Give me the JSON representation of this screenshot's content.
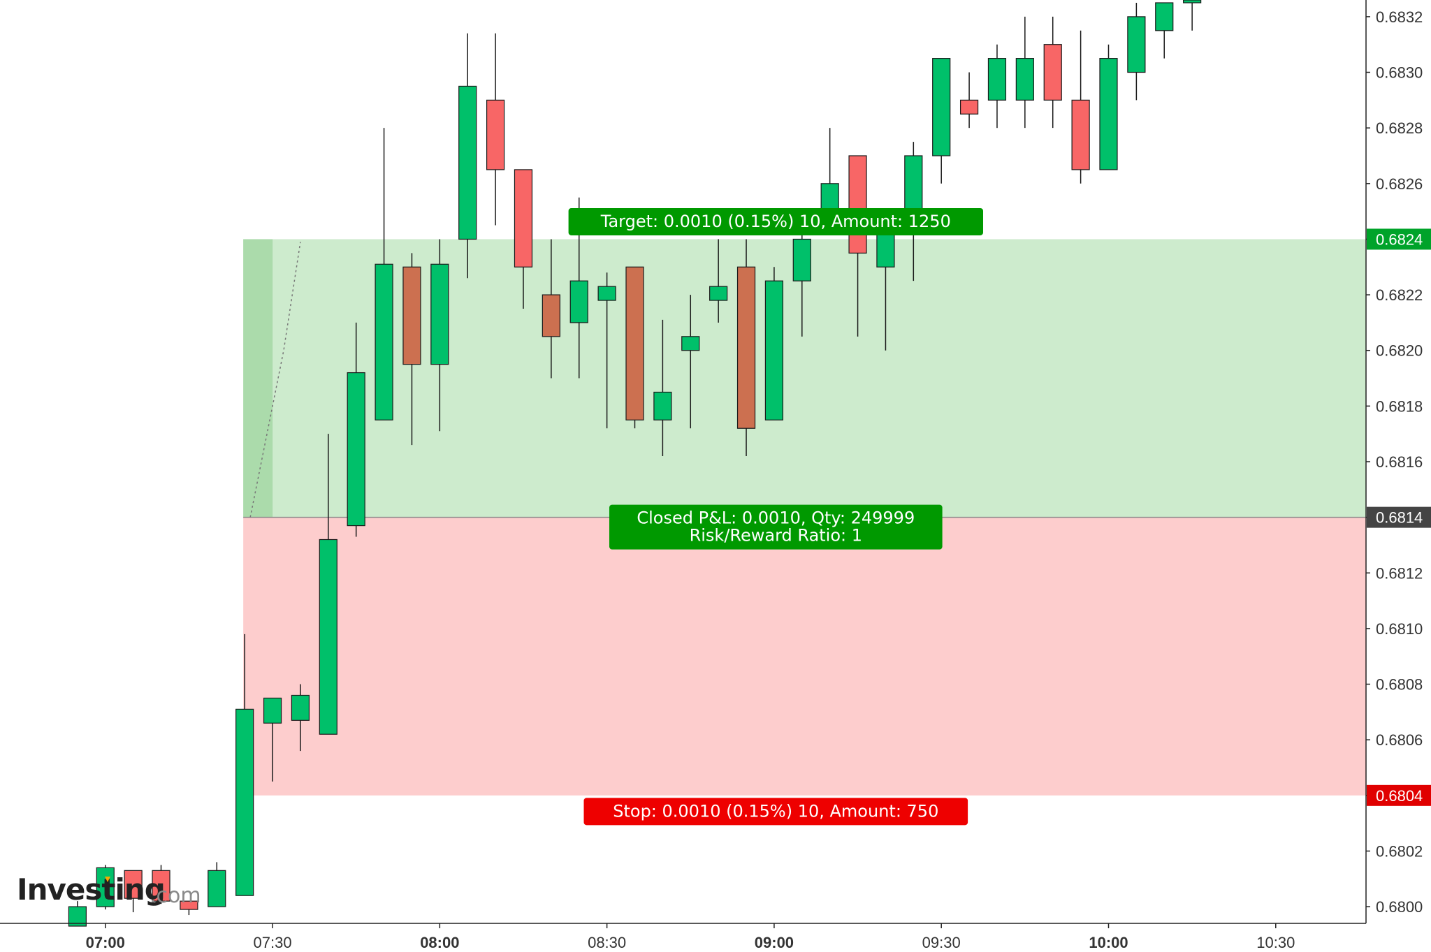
{
  "chart_data": {
    "type": "candlestick",
    "x_ticks": [
      {
        "label": "07:00",
        "minute": 420,
        "bold": true
      },
      {
        "label": "07:30",
        "minute": 450,
        "bold": false
      },
      {
        "label": "08:00",
        "minute": 480,
        "bold": true
      },
      {
        "label": "08:30",
        "minute": 510,
        "bold": false
      },
      {
        "label": "09:00",
        "minute": 540,
        "bold": true
      },
      {
        "label": "09:30",
        "minute": 570,
        "bold": false
      },
      {
        "label": "10:00",
        "minute": 600,
        "bold": true
      },
      {
        "label": "10:30",
        "minute": 630,
        "bold": false
      }
    ],
    "x_range_minutes": [
      401.1,
      646.2
    ],
    "y_ticks": [
      "0.6800",
      "0.6802",
      "0.6804",
      "0.6806",
      "0.6808",
      "0.6810",
      "0.6812",
      "0.6814",
      "0.6816",
      "0.6818",
      "0.6820",
      "0.6822",
      "0.6824",
      "0.6826",
      "0.6828",
      "0.6830",
      "0.6832"
    ],
    "ylim": [
      0.67994,
      0.68326
    ],
    "candles": [
      {
        "t": 415,
        "o": 0.67993,
        "h": 0.68002,
        "l": 0.67993,
        "c": 0.68
      },
      {
        "t": 420,
        "o": 0.68,
        "h": 0.68015,
        "l": 0.67999,
        "c": 0.68014
      },
      {
        "t": 425,
        "o": 0.68013,
        "h": 0.68013,
        "l": 0.67998,
        "c": 0.68003
      },
      {
        "t": 430,
        "o": 0.68013,
        "h": 0.68015,
        "l": 0.68001,
        "c": 0.68002
      },
      {
        "t": 435,
        "o": 0.68002,
        "h": 0.68002,
        "l": 0.67997,
        "c": 0.67999
      },
      {
        "t": 440,
        "o": 0.68,
        "h": 0.68016,
        "l": 0.68,
        "c": 0.68013
      },
      {
        "t": 445,
        "o": 0.68004,
        "h": 0.68098,
        "l": 0.68004,
        "c": 0.68071
      },
      {
        "t": 450,
        "o": 0.68066,
        "h": 0.68075,
        "l": 0.68045,
        "c": 0.68075
      },
      {
        "t": 455,
        "o": 0.68067,
        "h": 0.6808,
        "l": 0.68056,
        "c": 0.68076
      },
      {
        "t": 460,
        "o": 0.68062,
        "h": 0.6817,
        "l": 0.68062,
        "c": 0.68132
      },
      {
        "t": 465,
        "o": 0.68137,
        "h": 0.6821,
        "l": 0.68133,
        "c": 0.68192
      },
      {
        "t": 470,
        "o": 0.68175,
        "h": 0.6828,
        "l": 0.68175,
        "c": 0.68231
      },
      {
        "t": 475,
        "o": 0.6823,
        "h": 0.68235,
        "l": 0.68166,
        "c": 0.68195
      },
      {
        "t": 480,
        "o": 0.68195,
        "h": 0.6824,
        "l": 0.68171,
        "c": 0.68231
      },
      {
        "t": 485,
        "o": 0.6824,
        "h": 0.68314,
        "l": 0.68226,
        "c": 0.68295
      },
      {
        "t": 490,
        "o": 0.6829,
        "h": 0.68314,
        "l": 0.68245,
        "c": 0.68265
      },
      {
        "t": 495,
        "o": 0.68265,
        "h": 0.68265,
        "l": 0.68215,
        "c": 0.6823
      },
      {
        "t": 500,
        "o": 0.6822,
        "h": 0.6824,
        "l": 0.6819,
        "c": 0.68205
      },
      {
        "t": 505,
        "o": 0.6821,
        "h": 0.68255,
        "l": 0.6819,
        "c": 0.68225
      },
      {
        "t": 510,
        "o": 0.68218,
        "h": 0.68228,
        "l": 0.68172,
        "c": 0.68223
      },
      {
        "t": 515,
        "o": 0.6823,
        "h": 0.6823,
        "l": 0.68172,
        "c": 0.68175
      },
      {
        "t": 520,
        "o": 0.68175,
        "h": 0.68211,
        "l": 0.68162,
        "c": 0.68185
      },
      {
        "t": 525,
        "o": 0.682,
        "h": 0.6822,
        "l": 0.68172,
        "c": 0.68205
      },
      {
        "t": 530,
        "o": 0.68218,
        "h": 0.6824,
        "l": 0.6821,
        "c": 0.68223
      },
      {
        "t": 535,
        "o": 0.6823,
        "h": 0.6824,
        "l": 0.68162,
        "c": 0.68172
      },
      {
        "t": 540,
        "o": 0.68175,
        "h": 0.6823,
        "l": 0.68175,
        "c": 0.68225
      },
      {
        "t": 545,
        "o": 0.68225,
        "h": 0.68245,
        "l": 0.68205,
        "c": 0.6824
      },
      {
        "t": 550,
        "o": 0.6825,
        "h": 0.6828,
        "l": 0.68245,
        "c": 0.6826
      },
      {
        "t": 555,
        "o": 0.6827,
        "h": 0.6827,
        "l": 0.68205,
        "c": 0.68235
      },
      {
        "t": 560,
        "o": 0.6823,
        "h": 0.6825,
        "l": 0.682,
        "c": 0.6825
      },
      {
        "t": 565,
        "o": 0.68245,
        "h": 0.68275,
        "l": 0.68225,
        "c": 0.6827
      },
      {
        "t": 570,
        "o": 0.6827,
        "h": 0.68305,
        "l": 0.6826,
        "c": 0.68305
      },
      {
        "t": 575,
        "o": 0.6829,
        "h": 0.683,
        "l": 0.6828,
        "c": 0.68285
      },
      {
        "t": 580,
        "o": 0.6829,
        "h": 0.6831,
        "l": 0.6828,
        "c": 0.68305
      },
      {
        "t": 585,
        "o": 0.6829,
        "h": 0.6832,
        "l": 0.6828,
        "c": 0.68305
      },
      {
        "t": 590,
        "o": 0.6831,
        "h": 0.6832,
        "l": 0.6828,
        "c": 0.6829
      },
      {
        "t": 595,
        "o": 0.6829,
        "h": 0.68315,
        "l": 0.6826,
        "c": 0.68265
      },
      {
        "t": 600,
        "o": 0.68265,
        "h": 0.6831,
        "l": 0.68265,
        "c": 0.68305
      },
      {
        "t": 605,
        "o": 0.683,
        "h": 0.68325,
        "l": 0.6829,
        "c": 0.6832
      },
      {
        "t": 610,
        "o": 0.68315,
        "h": 0.68325,
        "l": 0.68305,
        "c": 0.68325
      },
      {
        "t": 615,
        "o": 0.68325,
        "h": 0.6833,
        "l": 0.68315,
        "c": 0.68326
      }
    ],
    "position": {
      "start_minute": 445,
      "end_minute": 646,
      "entry": 0.6814,
      "target": 0.6824,
      "stop": 0.6804,
      "target_label": "Target: 0.0010 (0.15%) 10, Amount: 1250",
      "closed_label_line1": "Closed P&L: 0.0010, Qty: 249999",
      "closed_label_line2": "Risk/Reward Ratio: 1",
      "stop_label": "Stop: 0.0010 (0.15%) 10, Amount: 750"
    },
    "price_tags": [
      {
        "label": "0.6824",
        "value": 0.6824,
        "color": "#00A32A"
      },
      {
        "label": "0.6814",
        "value": 0.6814,
        "color": "#444444"
      },
      {
        "label": "0.6804",
        "value": 0.6804,
        "color": "#E00000"
      }
    ],
    "colors": {
      "up": "#00C06A",
      "down": "#F86666",
      "down_on_profit": "#CC7050",
      "profit_zone": "#CDEBCD",
      "loss_zone": "#FDCDCD",
      "badge_green": "#009900",
      "badge_red": "#EE0000"
    }
  },
  "logo": {
    "brand": "Investing",
    "suffix": ".com"
  }
}
